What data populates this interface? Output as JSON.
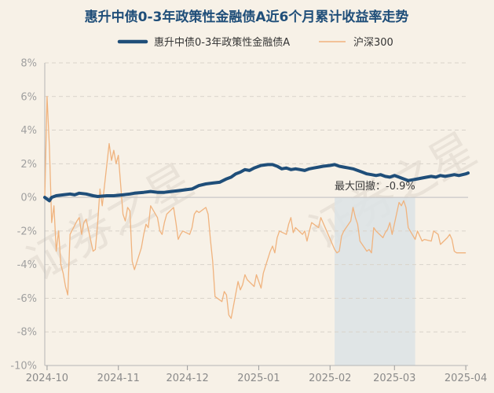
{
  "chart_data": {
    "type": "line",
    "title": "惠升中债0-3年政策性金融债A近6个月累计收益率走势",
    "xlabel": "",
    "ylabel": "",
    "y_unit": "%",
    "ylim": [
      -10,
      8
    ],
    "yticks": [
      8,
      6,
      4,
      2,
      0,
      -2,
      -4,
      -6,
      -8,
      -10
    ],
    "ytick_labels": [
      "8%",
      "6%",
      "4%",
      "2%",
      "0%",
      "-2%",
      "-4%",
      "-6%",
      "-8%",
      "-10%"
    ],
    "xlim": [
      "2024-09-30",
      "2025-04-02"
    ],
    "xticks": [
      "2024-10-01",
      "2024-11-01",
      "2024-12-01",
      "2025-01-01",
      "2025-02-01",
      "2025-03-01",
      "2025-04-01"
    ],
    "xtick_labels": [
      "2024-10",
      "2024-11",
      "2024-12",
      "2025-01",
      "2025-02",
      "2025-03",
      "2025-04"
    ],
    "grid": "horizontal dashed",
    "legend_position": "top",
    "series": [
      {
        "name": "惠升中债0-3年政策性金融债A",
        "color": "#1f4e79",
        "points": [
          [
            "2024-09-30",
            0.0
          ],
          [
            "2024-10-01",
            -0.1
          ],
          [
            "2024-10-02",
            -0.2
          ],
          [
            "2024-10-03",
            0.0
          ],
          [
            "2024-10-05",
            0.1
          ],
          [
            "2024-10-08",
            0.15
          ],
          [
            "2024-10-11",
            0.2
          ],
          [
            "2024-10-13",
            0.15
          ],
          [
            "2024-10-15",
            0.25
          ],
          [
            "2024-10-18",
            0.2
          ],
          [
            "2024-10-21",
            0.1
          ],
          [
            "2024-10-23",
            0.05
          ],
          [
            "2024-10-27",
            0.1
          ],
          [
            "2024-10-30",
            0.1
          ],
          [
            "2024-11-03",
            0.15
          ],
          [
            "2024-11-06",
            0.2
          ],
          [
            "2024-11-08",
            0.25
          ],
          [
            "2024-11-12",
            0.3
          ],
          [
            "2024-11-15",
            0.35
          ],
          [
            "2024-11-18",
            0.3
          ],
          [
            "2024-11-21",
            0.3
          ],
          [
            "2024-11-24",
            0.35
          ],
          [
            "2024-11-27",
            0.4
          ],
          [
            "2024-11-30",
            0.45
          ],
          [
            "2024-12-03",
            0.5
          ],
          [
            "2024-12-06",
            0.7
          ],
          [
            "2024-12-09",
            0.8
          ],
          [
            "2024-12-12",
            0.85
          ],
          [
            "2024-12-15",
            0.9
          ],
          [
            "2024-12-18",
            1.1
          ],
          [
            "2024-12-20",
            1.2
          ],
          [
            "2024-12-22",
            1.4
          ],
          [
            "2024-12-24",
            1.5
          ],
          [
            "2024-12-26",
            1.65
          ],
          [
            "2024-12-28",
            1.6
          ],
          [
            "2024-12-30",
            1.75
          ],
          [
            "2025-01-02",
            1.9
          ],
          [
            "2025-01-05",
            1.95
          ],
          [
            "2025-01-07",
            1.95
          ],
          [
            "2025-01-09",
            1.85
          ],
          [
            "2025-01-11",
            1.7
          ],
          [
            "2025-01-13",
            1.75
          ],
          [
            "2025-01-15",
            1.65
          ],
          [
            "2025-01-17",
            1.7
          ],
          [
            "2025-01-19",
            1.65
          ],
          [
            "2025-01-21",
            1.6
          ],
          [
            "2025-01-23",
            1.7
          ],
          [
            "2025-01-25",
            1.75
          ],
          [
            "2025-01-27",
            1.8
          ],
          [
            "2025-01-29",
            1.85
          ],
          [
            "2025-02-01",
            1.9
          ],
          [
            "2025-02-03",
            1.95
          ],
          [
            "2025-02-05",
            1.85
          ],
          [
            "2025-02-07",
            1.8
          ],
          [
            "2025-02-09",
            1.75
          ],
          [
            "2025-02-11",
            1.7
          ],
          [
            "2025-02-13",
            1.6
          ],
          [
            "2025-02-15",
            1.5
          ],
          [
            "2025-02-17",
            1.4
          ],
          [
            "2025-02-19",
            1.35
          ],
          [
            "2025-02-21",
            1.3
          ],
          [
            "2025-02-23",
            1.35
          ],
          [
            "2025-02-25",
            1.25
          ],
          [
            "2025-02-27",
            1.2
          ],
          [
            "2025-03-01",
            1.3
          ],
          [
            "2025-03-03",
            1.2
          ],
          [
            "2025-03-05",
            1.1
          ],
          [
            "2025-03-07",
            1.0
          ],
          [
            "2025-03-09",
            1.05
          ],
          [
            "2025-03-11",
            1.1
          ],
          [
            "2025-03-13",
            1.15
          ],
          [
            "2025-03-15",
            1.2
          ],
          [
            "2025-03-17",
            1.25
          ],
          [
            "2025-03-19",
            1.2
          ],
          [
            "2025-03-21",
            1.3
          ],
          [
            "2025-03-23",
            1.25
          ],
          [
            "2025-03-25",
            1.3
          ],
          [
            "2025-03-27",
            1.35
          ],
          [
            "2025-03-29",
            1.3
          ],
          [
            "2025-04-01",
            1.4
          ],
          [
            "2025-04-02",
            1.45
          ]
        ]
      },
      {
        "name": "沪深300",
        "color": "#f0b37e",
        "points": [
          [
            "2024-09-30",
            0.0
          ],
          [
            "2024-10-01",
            6.0
          ],
          [
            "2024-10-02",
            3.0
          ],
          [
            "2024-10-03",
            -1.5
          ],
          [
            "2024-10-04",
            -0.5
          ],
          [
            "2024-10-05",
            -3.2
          ],
          [
            "2024-10-06",
            -2.0
          ],
          [
            "2024-10-07",
            -4.0
          ],
          [
            "2024-10-08",
            -4.5
          ],
          [
            "2024-10-09",
            -5.3
          ],
          [
            "2024-10-10",
            -5.8
          ],
          [
            "2024-10-11",
            -2.2
          ],
          [
            "2024-10-14",
            -1.4
          ],
          [
            "2024-10-15",
            -1.2
          ],
          [
            "2024-10-16",
            -2.2
          ],
          [
            "2024-10-17",
            -1.5
          ],
          [
            "2024-10-18",
            -1.3
          ],
          [
            "2024-10-21",
            -3.2
          ],
          [
            "2024-10-22",
            -3.1
          ],
          [
            "2024-10-23",
            -1.5
          ],
          [
            "2024-10-24",
            0.5
          ],
          [
            "2024-10-25",
            -0.5
          ],
          [
            "2024-10-28",
            3.2
          ],
          [
            "2024-10-29",
            2.2
          ],
          [
            "2024-10-30",
            2.8
          ],
          [
            "2024-10-31",
            2.0
          ],
          [
            "2024-11-01",
            2.5
          ],
          [
            "2024-11-03",
            -1.0
          ],
          [
            "2024-11-04",
            -1.4
          ],
          [
            "2024-11-05",
            -0.6
          ],
          [
            "2024-11-06",
            -0.8
          ],
          [
            "2024-11-07",
            -3.8
          ],
          [
            "2024-11-08",
            -4.3
          ],
          [
            "2024-11-11",
            -3.0
          ],
          [
            "2024-11-12",
            -2.2
          ],
          [
            "2024-11-13",
            -1.6
          ],
          [
            "2024-11-14",
            -1.8
          ],
          [
            "2024-11-15",
            -0.5
          ],
          [
            "2024-11-18",
            -1.2
          ],
          [
            "2024-11-19",
            -2.0
          ],
          [
            "2024-11-20",
            -2.2
          ],
          [
            "2024-11-21",
            -1.5
          ],
          [
            "2024-11-22",
            -1.0
          ],
          [
            "2024-11-25",
            -0.6
          ],
          [
            "2024-11-26",
            -1.5
          ],
          [
            "2024-11-27",
            -2.5
          ],
          [
            "2024-11-28",
            -2.2
          ],
          [
            "2024-11-29",
            -2.0
          ],
          [
            "2024-12-02",
            -2.2
          ],
          [
            "2024-12-03",
            -1.8
          ],
          [
            "2024-12-04",
            -1.0
          ],
          [
            "2024-12-05",
            -0.8
          ],
          [
            "2024-12-06",
            -0.9
          ],
          [
            "2024-12-09",
            -0.6
          ],
          [
            "2024-12-10",
            -1.0
          ],
          [
            "2024-12-11",
            -2.5
          ],
          [
            "2024-12-12",
            -3.8
          ],
          [
            "2024-12-13",
            -5.9
          ],
          [
            "2024-12-16",
            -6.2
          ],
          [
            "2024-12-17",
            -5.6
          ],
          [
            "2024-12-18",
            -5.8
          ],
          [
            "2024-12-19",
            -7.0
          ],
          [
            "2024-12-20",
            -7.2
          ],
          [
            "2024-12-23",
            -5.0
          ],
          [
            "2024-12-24",
            -5.5
          ],
          [
            "2024-12-25",
            -5.2
          ],
          [
            "2024-12-26",
            -4.6
          ],
          [
            "2024-12-27",
            -4.9
          ],
          [
            "2024-12-30",
            -5.3
          ],
          [
            "2024-12-31",
            -4.6
          ],
          [
            "2025-01-02",
            -5.4
          ],
          [
            "2025-01-03",
            -4.5
          ],
          [
            "2025-01-06",
            -3.2
          ],
          [
            "2025-01-07",
            -2.9
          ],
          [
            "2025-01-08",
            -3.3
          ],
          [
            "2025-01-09",
            -2.4
          ],
          [
            "2025-01-10",
            -2.0
          ],
          [
            "2025-01-13",
            -2.2
          ],
          [
            "2025-01-14",
            -1.6
          ],
          [
            "2025-01-15",
            -1.2
          ],
          [
            "2025-01-16",
            -2.1
          ],
          [
            "2025-01-17",
            -1.8
          ],
          [
            "2025-01-20",
            -2.2
          ],
          [
            "2025-01-21",
            -2.0
          ],
          [
            "2025-01-22",
            -2.6
          ],
          [
            "2025-01-23",
            -2.0
          ],
          [
            "2025-01-24",
            -1.5
          ],
          [
            "2025-01-27",
            -1.8
          ],
          [
            "2025-01-28",
            -1.2
          ],
          [
            "2025-02-03",
            -3.1
          ],
          [
            "2025-02-04",
            -3.3
          ],
          [
            "2025-02-05",
            -3.2
          ],
          [
            "2025-02-06",
            -2.3
          ],
          [
            "2025-02-07",
            -2.0
          ],
          [
            "2025-02-10",
            -1.4
          ],
          [
            "2025-02-11",
            -0.6
          ],
          [
            "2025-02-12",
            -1.2
          ],
          [
            "2025-02-13",
            -1.6
          ],
          [
            "2025-02-14",
            -2.6
          ],
          [
            "2025-02-17",
            -3.2
          ],
          [
            "2025-02-18",
            -3.1
          ],
          [
            "2025-02-19",
            -3.3
          ],
          [
            "2025-02-20",
            -1.8
          ],
          [
            "2025-02-21",
            -2.0
          ],
          [
            "2025-02-24",
            -2.4
          ],
          [
            "2025-02-25",
            -2.1
          ],
          [
            "2025-02-26",
            -1.9
          ],
          [
            "2025-02-27",
            -1.5
          ],
          [
            "2025-02-28",
            -2.2
          ],
          [
            "2025-03-03",
            -0.3
          ],
          [
            "2025-03-04",
            -0.5
          ],
          [
            "2025-03-05",
            -0.2
          ],
          [
            "2025-03-06",
            -0.6
          ],
          [
            "2025-03-07",
            -1.8
          ],
          [
            "2025-03-10",
            -2.5
          ],
          [
            "2025-03-11",
            -2.0
          ],
          [
            "2025-03-12",
            -2.3
          ],
          [
            "2025-03-13",
            -2.6
          ],
          [
            "2025-03-14",
            -2.5
          ],
          [
            "2025-03-17",
            -2.6
          ],
          [
            "2025-03-18",
            -2.0
          ],
          [
            "2025-03-19",
            -2.1
          ],
          [
            "2025-03-20",
            -2.2
          ],
          [
            "2025-03-21",
            -2.8
          ],
          [
            "2025-03-24",
            -2.4
          ],
          [
            "2025-03-25",
            -2.2
          ],
          [
            "2025-03-26",
            -2.5
          ],
          [
            "2025-03-27",
            -3.2
          ],
          [
            "2025-03-28",
            -3.3
          ],
          [
            "2025-03-31",
            -3.3
          ],
          [
            "2025-04-01",
            -3.3
          ]
        ]
      }
    ],
    "shaded_region": {
      "x_start": "2025-02-03",
      "x_end": "2025-03-10",
      "label": "最大回撤：-0.9%"
    },
    "watermark": "证券之星"
  }
}
